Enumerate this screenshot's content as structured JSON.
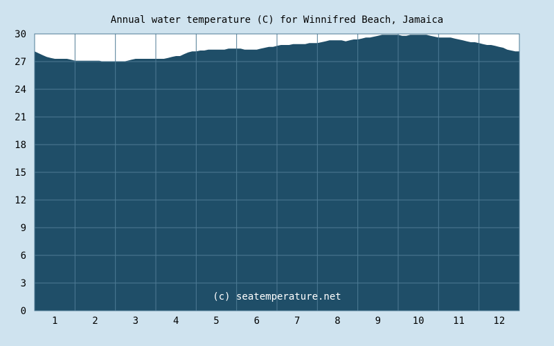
{
  "chart_data": {
    "type": "area",
    "title": "Annual water temperature (C) for Winnifred Beach, Jamaica",
    "xlabel": "",
    "ylabel": "",
    "x_tick_labels": [
      "1",
      "2",
      "3",
      "4",
      "5",
      "6",
      "7",
      "8",
      "9",
      "10",
      "11",
      "12"
    ],
    "y_tick_labels": [
      "0",
      "3",
      "6",
      "9",
      "12",
      "15",
      "18",
      "21",
      "24",
      "27",
      "30"
    ],
    "ylim": [
      0,
      30
    ],
    "xlim": [
      0.5,
      12.5
    ],
    "grid": true,
    "series": [
      {
        "x": [
          0.5,
          0.6,
          0.7,
          0.8,
          0.9,
          1.0,
          1.1,
          1.2,
          1.3,
          1.4,
          1.5,
          1.6,
          1.7,
          1.8,
          1.9,
          2.0,
          2.1,
          2.2,
          2.3,
          2.4,
          2.5,
          2.6,
          2.7,
          2.8,
          2.9,
          3.0,
          3.1,
          3.2,
          3.3,
          3.4,
          3.5,
          3.6,
          3.7,
          3.8,
          3.9,
          4.0,
          4.1,
          4.2,
          4.3,
          4.4,
          4.5,
          4.6,
          4.7,
          4.8,
          4.9,
          5.0,
          5.1,
          5.2,
          5.3,
          5.4,
          5.5,
          5.6,
          5.7,
          5.8,
          5.9,
          6.0,
          6.1,
          6.2,
          6.3,
          6.4,
          6.5,
          6.6,
          6.7,
          6.8,
          6.9,
          7.0,
          7.1,
          7.2,
          7.3,
          7.4,
          7.5,
          7.6,
          7.7,
          7.8,
          7.9,
          8.0,
          8.1,
          8.2,
          8.3,
          8.4,
          8.5,
          8.6,
          8.7,
          8.8,
          8.9,
          9.0,
          9.1,
          9.2,
          9.3,
          9.4,
          9.5,
          9.6,
          9.7,
          9.8,
          9.9,
          10.0,
          10.1,
          10.2,
          10.3,
          10.4,
          10.5,
          10.6,
          10.7,
          10.8,
          10.9,
          11.0,
          11.1,
          11.2,
          11.3,
          11.4,
          11.5,
          11.6,
          11.7,
          11.8,
          11.9,
          12.0,
          12.1,
          12.2,
          12.3,
          12.4,
          12.5
        ],
        "values": [
          28.1,
          27.9,
          27.7,
          27.5,
          27.4,
          27.3,
          27.3,
          27.3,
          27.3,
          27.2,
          27.1,
          27.1,
          27.1,
          27.1,
          27.1,
          27.1,
          27.1,
          27.0,
          27.0,
          27.0,
          27.0,
          27.0,
          27.0,
          27.1,
          27.2,
          27.3,
          27.3,
          27.3,
          27.3,
          27.3,
          27.3,
          27.3,
          27.3,
          27.4,
          27.5,
          27.6,
          27.6,
          27.8,
          28.0,
          28.1,
          28.1,
          28.2,
          28.2,
          28.3,
          28.3,
          28.3,
          28.3,
          28.3,
          28.4,
          28.4,
          28.4,
          28.4,
          28.3,
          28.3,
          28.3,
          28.3,
          28.4,
          28.5,
          28.6,
          28.6,
          28.7,
          28.8,
          28.8,
          28.8,
          28.9,
          28.9,
          28.9,
          28.9,
          29.0,
          29.0,
          29.0,
          29.1,
          29.2,
          29.3,
          29.3,
          29.3,
          29.3,
          29.2,
          29.3,
          29.4,
          29.4,
          29.5,
          29.6,
          29.6,
          29.7,
          29.8,
          29.9,
          29.9,
          29.9,
          29.9,
          29.9,
          29.8,
          29.8,
          29.9,
          29.9,
          29.9,
          29.9,
          29.9,
          29.8,
          29.7,
          29.6,
          29.6,
          29.6,
          29.6,
          29.5,
          29.4,
          29.3,
          29.2,
          29.1,
          29.1,
          29.0,
          28.9,
          28.8,
          28.8,
          28.7,
          28.6,
          28.5,
          28.3,
          28.2,
          28.1,
          28.1
        ]
      }
    ],
    "annotation": "(c) seatemperature.net",
    "colors": {
      "background": "#cfe3ef",
      "plot_background": "#ffffff",
      "area_fill": "#1f4e68",
      "grid": "#4f7b95",
      "frame": "#4f7b95"
    }
  }
}
